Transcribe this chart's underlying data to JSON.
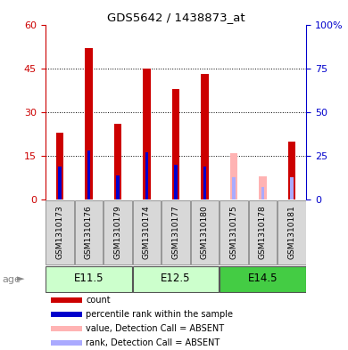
{
  "title": "GDS5642 / 1438873_at",
  "samples": [
    "GSM1310173",
    "GSM1310176",
    "GSM1310179",
    "GSM1310174",
    "GSM1310177",
    "GSM1310180",
    "GSM1310175",
    "GSM1310178",
    "GSM1310181"
  ],
  "count_values": [
    23,
    52,
    26,
    45,
    38,
    43,
    null,
    null,
    20
  ],
  "count_absent_values": [
    null,
    null,
    null,
    null,
    null,
    null,
    16,
    8,
    null
  ],
  "rank_values": [
    19,
    28,
    14,
    27,
    20,
    19,
    null,
    null,
    13
  ],
  "rank_absent_values": [
    null,
    null,
    null,
    null,
    null,
    null,
    13,
    7,
    13
  ],
  "ylim_left": [
    0,
    60
  ],
  "ylim_right": [
    0,
    100
  ],
  "yticks_left": [
    0,
    15,
    30,
    45,
    60
  ],
  "yticks_right": [
    0,
    25,
    50,
    75,
    100
  ],
  "ytick_labels_right": [
    "0",
    "25",
    "50",
    "75",
    "100%"
  ],
  "bar_color_present": "#cc0000",
  "rank_color_present": "#0000cc",
  "bar_color_absent": "#ffb3b3",
  "rank_color_absent": "#aaaaff",
  "group_label_data": [
    {
      "start": 0,
      "end": 2,
      "label": "E11.5",
      "color": "#ccffcc"
    },
    {
      "start": 3,
      "end": 5,
      "label": "E12.5",
      "color": "#ccffcc"
    },
    {
      "start": 6,
      "end": 8,
      "label": "E14.5",
      "color": "#44cc44"
    }
  ],
  "legend_items": [
    {
      "label": "count",
      "color": "#cc0000"
    },
    {
      "label": "percentile rank within the sample",
      "color": "#0000cc"
    },
    {
      "label": "value, Detection Call = ABSENT",
      "color": "#ffb3b3"
    },
    {
      "label": "rank, Detection Call = ABSENT",
      "color": "#aaaaff"
    }
  ],
  "tick_label_color_left": "#cc0000",
  "tick_label_color_right": "#0000cc",
  "bar_width": 0.25,
  "rank_bar_width": 0.1,
  "background_color": "#ffffff"
}
